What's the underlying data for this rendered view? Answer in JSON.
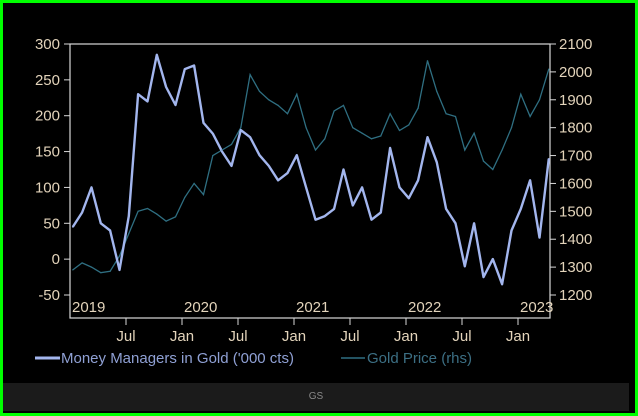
{
  "footer": {
    "source": "GS"
  },
  "colors": {
    "mm": "#a3b6ee",
    "gold": "#2f6f82",
    "axis": "#d8d8d8",
    "ticktext": "#e3d4bb",
    "border": "#00ff00"
  },
  "chart_data": {
    "type": "line",
    "title": "",
    "x": [
      "2019-01",
      "2019-02",
      "2019-03",
      "2019-04",
      "2019-05",
      "2019-06",
      "2019-07",
      "2019-08",
      "2019-09",
      "2019-10",
      "2019-11",
      "2019-12",
      "2020-01",
      "2020-02",
      "2020-03",
      "2020-04",
      "2020-05",
      "2020-06",
      "2020-07",
      "2020-08",
      "2020-09",
      "2020-10",
      "2020-11",
      "2020-12",
      "2021-01",
      "2021-02",
      "2021-03",
      "2021-04",
      "2021-05",
      "2021-06",
      "2021-07",
      "2021-08",
      "2021-09",
      "2021-10",
      "2021-11",
      "2021-12",
      "2022-01",
      "2022-02",
      "2022-03",
      "2022-04",
      "2022-05",
      "2022-06",
      "2022-07",
      "2022-08",
      "2022-09",
      "2022-10",
      "2022-11",
      "2022-12",
      "2023-01",
      "2023-02",
      "2023-03",
      "2023-04"
    ],
    "series": [
      {
        "name": "Money Managers in Gold ('000 cts)",
        "axis": "left",
        "values": [
          45,
          65,
          100,
          50,
          40,
          -15,
          60,
          230,
          220,
          285,
          240,
          215,
          265,
          270,
          190,
          175,
          150,
          130,
          180,
          170,
          145,
          130,
          110,
          120,
          145,
          100,
          55,
          60,
          70,
          125,
          75,
          100,
          55,
          65,
          155,
          100,
          85,
          110,
          170,
          135,
          70,
          50,
          -10,
          50,
          -25,
          0,
          -35,
          40,
          70,
          110,
          30,
          140
        ]
      },
      {
        "name": "Gold Price (rhs)",
        "axis": "right",
        "values": [
          1290,
          1315,
          1300,
          1280,
          1285,
          1340,
          1420,
          1500,
          1510,
          1490,
          1465,
          1480,
          1550,
          1600,
          1560,
          1700,
          1720,
          1740,
          1800,
          1990,
          1930,
          1900,
          1880,
          1850,
          1920,
          1800,
          1720,
          1760,
          1860,
          1880,
          1800,
          1780,
          1760,
          1770,
          1850,
          1790,
          1810,
          1870,
          2040,
          1930,
          1850,
          1840,
          1720,
          1780,
          1680,
          1650,
          1720,
          1800,
          1920,
          1840,
          1900,
          2010
        ]
      }
    ],
    "ylim_left": [
      -50,
      300
    ],
    "ylim_right": [
      1200,
      2100
    ],
    "yticks_left": [
      "300",
      "250",
      "200",
      "150",
      "100",
      "50",
      "0",
      "-50"
    ],
    "yticks_right": [
      "2100",
      "2000",
      "1900",
      "1800",
      "1700",
      "1600",
      "1500",
      "1400",
      "1300",
      "1200"
    ],
    "year_labels": [
      "2019",
      "2020",
      "2021",
      "2022",
      "2023"
    ],
    "month_labels": [
      "Jul",
      "Jan",
      "Jul",
      "Jan",
      "Jul",
      "Jan",
      "Jul",
      "Jan"
    ],
    "legend": [
      "Money Managers in Gold ('000 cts)",
      "Gold Price (rhs)"
    ],
    "legend_placement": "bottom-left",
    "grid": false
  }
}
